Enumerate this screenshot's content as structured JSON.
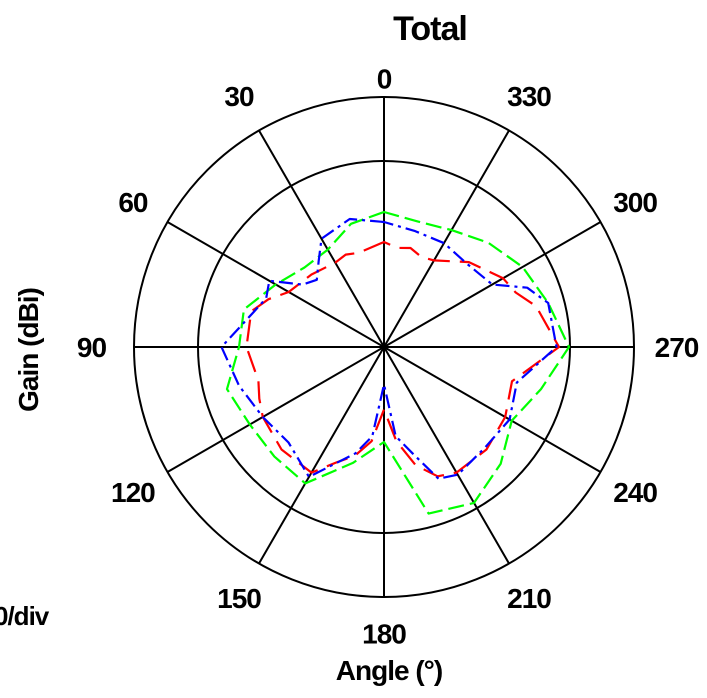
{
  "chart_data": {
    "type": "polar-line",
    "title": "Total",
    "xlabel": "Angle (°)",
    "ylabel": "Gain (dBi)",
    "scale_label": "0/div",
    "angle_direction": "counterclockwise",
    "angle_zero": "top",
    "angle_ticks": [
      0,
      30,
      60,
      90,
      120,
      150,
      180,
      210,
      240,
      270,
      300,
      330
    ],
    "rlim": [
      0,
      1
    ],
    "rings": [
      0.744,
      1.0
    ],
    "grid": true,
    "legend": "none",
    "series": [
      {
        "color": "#ff0000",
        "dash": "long-dash",
        "angles": [
          0,
          15,
          22.5,
          30,
          45,
          60,
          67.5,
          75,
          90,
          105,
          112.5,
          120,
          135,
          150,
          157.5,
          165,
          172.5,
          180,
          187.5,
          195,
          202.5,
          210,
          225,
          240,
          255,
          270,
          285,
          292.5,
          300,
          315,
          330,
          337.5,
          345,
          352.5
        ],
        "r": [
          0.42,
          0.39,
          0.4,
          0.39,
          0.41,
          0.44,
          0.5,
          0.55,
          0.55,
          0.52,
          0.54,
          0.56,
          0.58,
          0.58,
          0.5,
          0.45,
          0.38,
          0.25,
          0.38,
          0.49,
          0.56,
          0.58,
          0.58,
          0.56,
          0.53,
          0.7,
          0.63,
          0.57,
          0.55,
          0.48,
          0.4,
          0.39,
          0.41,
          0.4
        ]
      },
      {
        "color": "#00ff00",
        "dash": "dash",
        "angles": [
          0,
          15,
          30,
          45,
          60,
          75,
          90,
          105,
          120,
          135,
          150,
          165,
          180,
          195,
          210,
          225,
          240,
          255,
          270,
          285,
          300,
          315,
          330,
          345
        ],
        "r": [
          0.54,
          0.51,
          0.45,
          0.45,
          0.5,
          0.58,
          0.58,
          0.65,
          0.62,
          0.62,
          0.63,
          0.48,
          0.38,
          0.69,
          0.72,
          0.66,
          0.59,
          0.65,
          0.74,
          0.68,
          0.64,
          0.59,
          0.54,
          0.52
        ]
      },
      {
        "color": "#0000ff",
        "dash": "dash-dot",
        "angles": [
          0,
          15,
          30,
          37.5,
          45,
          52.5,
          60,
          67.5,
          75,
          90,
          105,
          120,
          135,
          150,
          165,
          172.5,
          180,
          187.5,
          195,
          202.5,
          210,
          225,
          240,
          247.5,
          255,
          270,
          285,
          292.5,
          300,
          315,
          330,
          345
        ],
        "r": [
          0.5,
          0.53,
          0.5,
          0.43,
          0.38,
          0.41,
          0.53,
          0.51,
          0.54,
          0.65,
          0.6,
          0.56,
          0.54,
          0.6,
          0.44,
          0.36,
          0.15,
          0.36,
          0.44,
          0.57,
          0.59,
          0.57,
          0.58,
          0.56,
          0.55,
          0.69,
          0.68,
          0.62,
          0.5,
          0.47,
          0.48,
          0.48
        ]
      }
    ]
  }
}
